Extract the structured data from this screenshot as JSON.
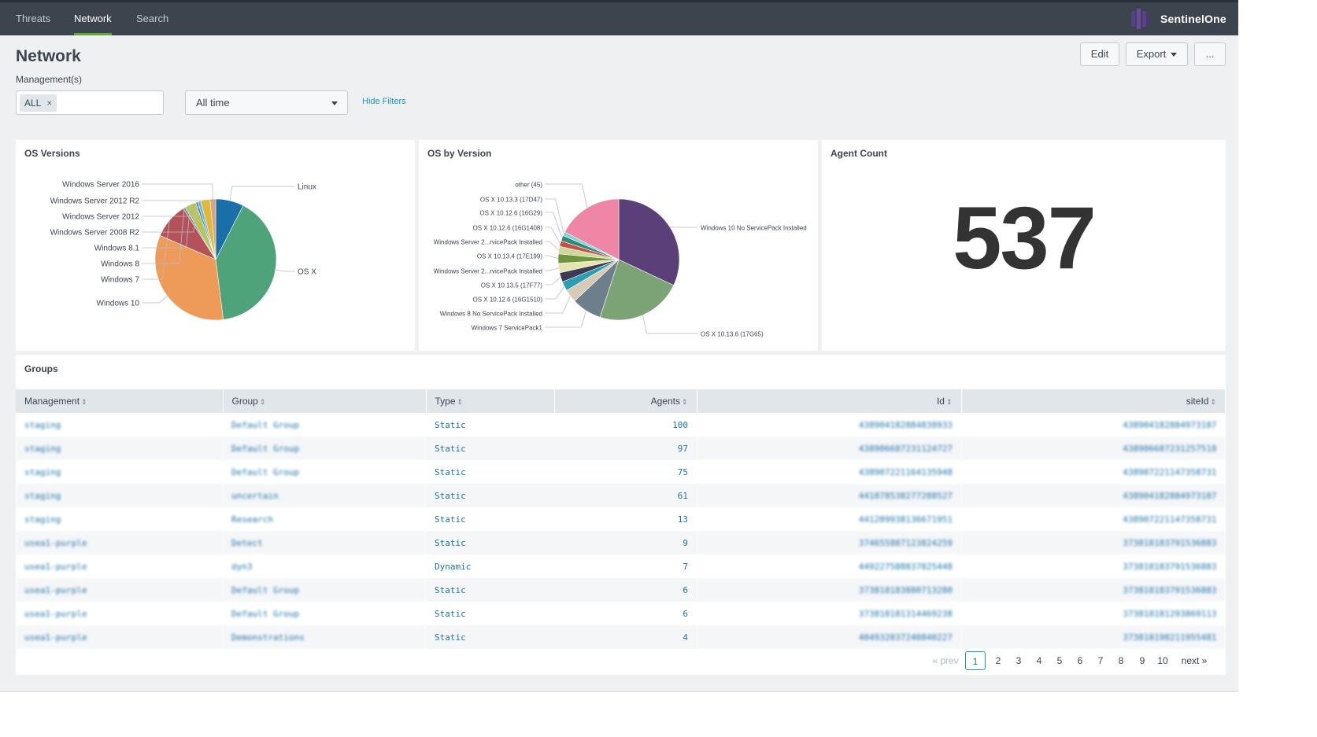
{
  "nav": {
    "tabs": [
      {
        "label": "Threats"
      },
      {
        "label": "Network"
      },
      {
        "label": "Search"
      }
    ],
    "active_tab": "Network",
    "brand": "SentinelOne",
    "brand_color": "#5b3e8c"
  },
  "page": {
    "title": "Network",
    "buttons": {
      "edit": "Edit",
      "export": "Export",
      "more": "..."
    }
  },
  "filters": {
    "management_label": "Management(s)",
    "management_chip": "ALL",
    "chip_remove": "×",
    "time_range": "All time",
    "hide_filters": "Hide Filters"
  },
  "panels": {
    "os_versions": {
      "title": "OS Versions"
    },
    "os_by_version": {
      "title": "OS by Version"
    },
    "agent_count": {
      "title": "Agent Count",
      "value": "537"
    },
    "groups": {
      "title": "Groups"
    }
  },
  "chart_data": [
    {
      "type": "pie",
      "title": "OS Versions",
      "labels": [
        "Linux",
        "OS X",
        "Windows 10",
        "Windows 7",
        "Windows 8",
        "Windows 8.1",
        "Windows Server 2008 R2",
        "Windows Server 2012",
        "Windows Server 2012 R2",
        "Windows Server 2016"
      ],
      "values": [
        7.5,
        40.5,
        33.5,
        9.5,
        0.6,
        3.0,
        0.6,
        0.8,
        2.5,
        1.5
      ],
      "colors": [
        "#1a6fa8",
        "#4fa37a",
        "#ee9a58",
        "#b55158",
        "#6f8aa3",
        "#b6c45a",
        "#3b82c4",
        "#6fb7d5",
        "#e0b93a",
        "#d4a583"
      ]
    },
    {
      "type": "pie",
      "title": "OS by Version",
      "labels": [
        "Windows 10 No ServicePack Installed",
        "OS X 10.13.6 (17G65)",
        "Windows 7 ServicePack1",
        "Windows 8 No ServicePack Installed",
        "OS X 10.12.6 (16G1510)",
        "OS X 10.13.5 (17F77)",
        "Windows Server 2...rvicePack Installed",
        "OS X 10.13.4 (17E199)",
        "Windows Server 2...rvicePack Installed",
        "OS X 10.12.6 (16G1408)",
        "OS X 10.12.6 (16G29)",
        "OS X 10.13.3 (17D47)",
        "other (45)"
      ],
      "values": [
        32.0,
        23.0,
        8.0,
        3.5,
        2.5,
        2.5,
        2.5,
        2.5,
        2.0,
        1.5,
        1.5,
        1.0,
        17.5
      ],
      "colors": [
        "#5a3f79",
        "#7ba375",
        "#6d7f8b",
        "#d7cbb8",
        "#2d9db0",
        "#3b3b55",
        "#e8e3b0",
        "#6f9440",
        "#cdd99a",
        "#c45046",
        "#2f8a77",
        "#7fd1d6",
        "#ef86a6"
      ]
    }
  ],
  "groups_table": {
    "columns": [
      "Management",
      "Group",
      "Type",
      "Agents",
      "Id",
      "siteId"
    ],
    "rows": [
      {
        "management": "staging",
        "group": "Default Group",
        "type": "Static",
        "agents": "100",
        "id": "438904182884838933",
        "siteid": "438904182884973187"
      },
      {
        "management": "staging",
        "group": "Default Group",
        "type": "Static",
        "agents": "97",
        "id": "438906687231124727",
        "siteid": "438906687231257518"
      },
      {
        "management": "staging",
        "group": "Default Group",
        "type": "Static",
        "agents": "75",
        "id": "438907221164135948",
        "siteid": "438907221147358731"
      },
      {
        "management": "staging",
        "group": "uncertain",
        "type": "Static",
        "agents": "61",
        "id": "441878538277288527",
        "siteid": "438904182884973187"
      },
      {
        "management": "staging",
        "group": "Research",
        "type": "Static",
        "agents": "13",
        "id": "441289938136671951",
        "siteid": "438907221147358731"
      },
      {
        "management": "usea1-purple",
        "group": "Detect",
        "type": "Static",
        "agents": "9",
        "id": "374655887123824259",
        "siteid": "373818183791536883"
      },
      {
        "management": "usea1-purple",
        "group": "dyn3",
        "type": "Dynamic",
        "agents": "7",
        "id": "449227588837825448",
        "siteid": "373818183791536883"
      },
      {
        "management": "usea1-purple",
        "group": "Default Group",
        "type": "Static",
        "agents": "6",
        "id": "373818183880713280",
        "siteid": "373818183791536883"
      },
      {
        "management": "usea1-purple",
        "group": "Default Group",
        "type": "Static",
        "agents": "6",
        "id": "373818181314469238",
        "siteid": "373818181293869113"
      },
      {
        "management": "usea1-purple",
        "group": "Demonstrations",
        "type": "Static",
        "agents": "4",
        "id": "404932037240840227",
        "siteid": "373818198211955481"
      }
    ]
  },
  "pagination": {
    "prev": "« prev",
    "pages": [
      "1",
      "2",
      "3",
      "4",
      "5",
      "6",
      "7",
      "8",
      "9",
      "10"
    ],
    "current": "1",
    "next": "next »"
  }
}
